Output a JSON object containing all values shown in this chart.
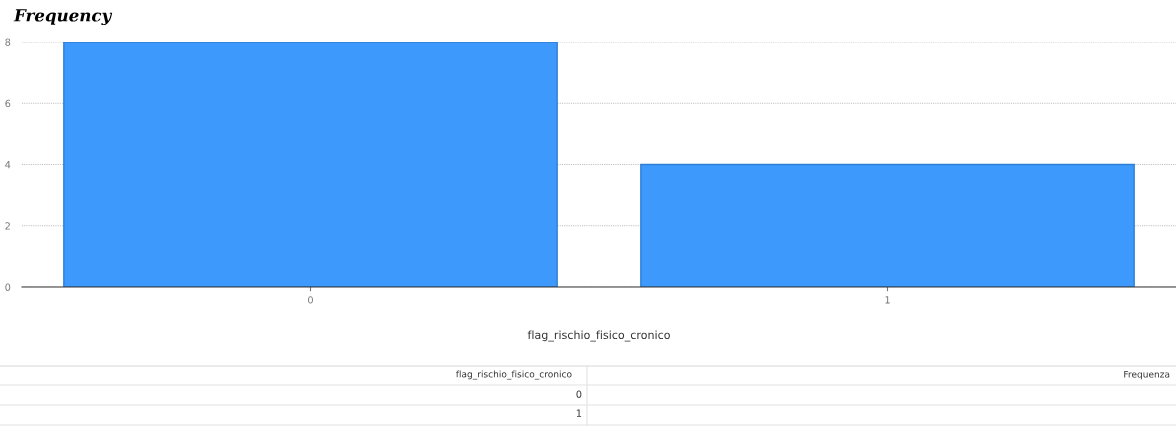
{
  "chart_data": {
    "type": "bar",
    "title": "Frequency",
    "categories": [
      "0",
      "1"
    ],
    "values": [
      8,
      4
    ],
    "color": "#3d99fb",
    "xlabel": "flag_rischio_fisico_cronico",
    "ylim": [
      0,
      8
    ],
    "yticks": [
      0,
      2,
      4,
      6,
      8
    ],
    "grid": "y",
    "annotations": [
      "flag_rischio_fisico_cronico",
      "Frequenza",
      "0",
      "1"
    ]
  }
}
